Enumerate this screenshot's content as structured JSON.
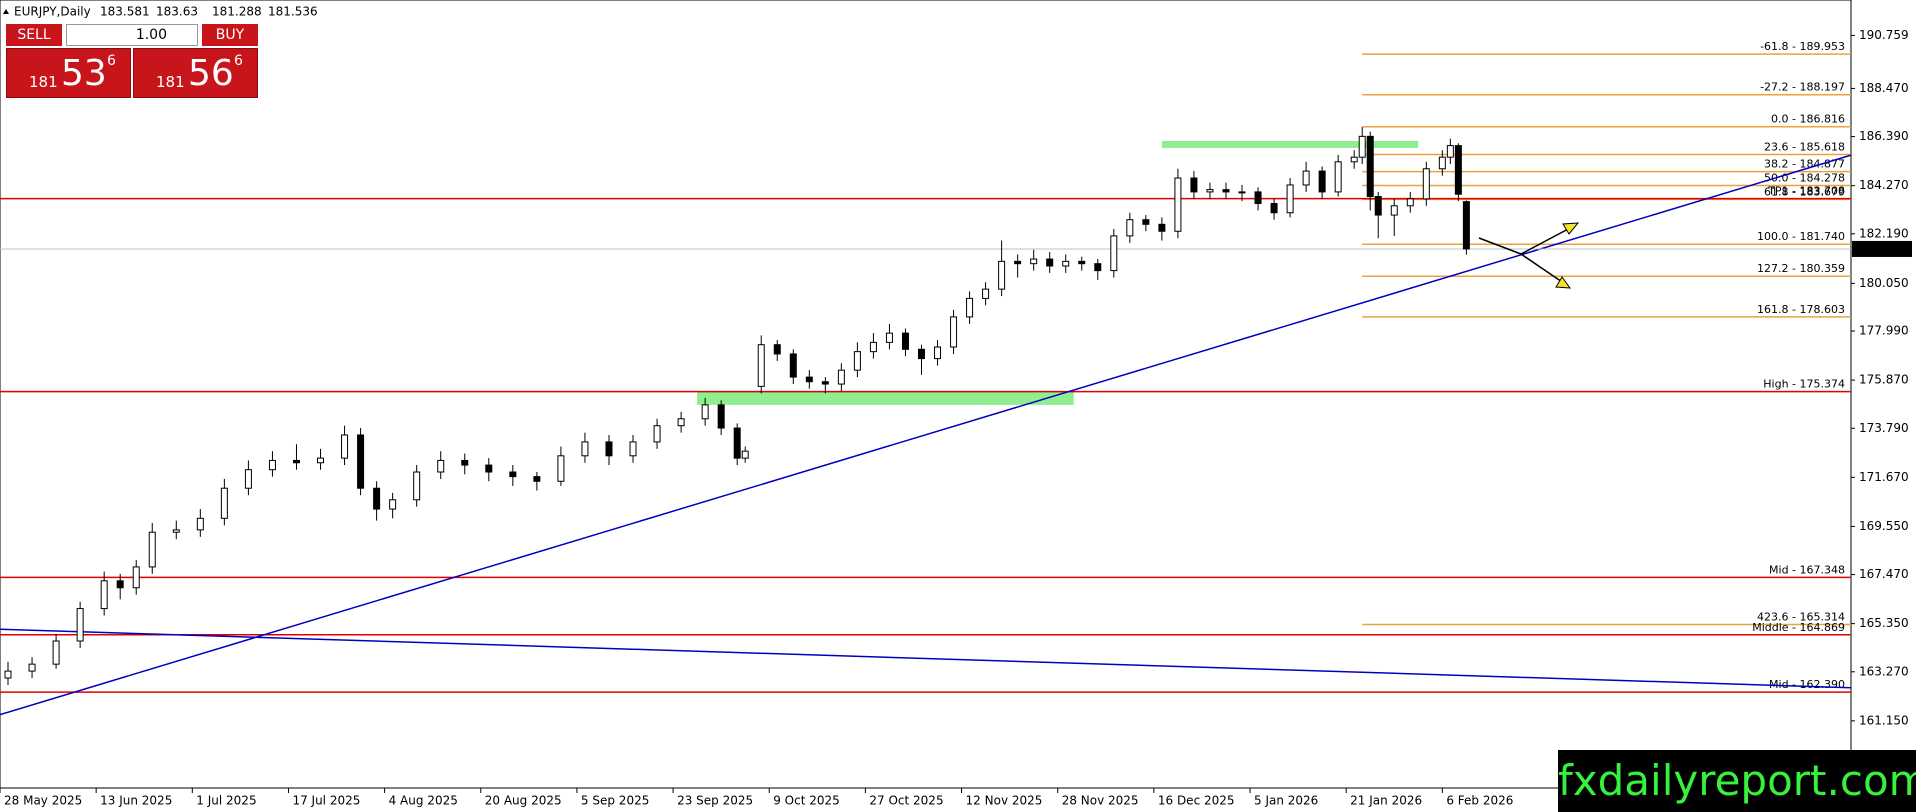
{
  "chart_data": {
    "type": "candlestick",
    "title": "EURJPY,Daily",
    "x": [
      1,
      4,
      7,
      10,
      13,
      15,
      17,
      19,
      22,
      25,
      28,
      31,
      34,
      37,
      40,
      43,
      45,
      47,
      49,
      52,
      55,
      58,
      61,
      64,
      67,
      70,
      73,
      76,
      79,
      82,
      85,
      88,
      90,
      92,
      93,
      95,
      97,
      99,
      101,
      103,
      105,
      107,
      109,
      111,
      113,
      115,
      117,
      119,
      121,
      123,
      125,
      127,
      129,
      131,
      133,
      135,
      137,
      139,
      141,
      143,
      145,
      147,
      149,
      151,
      153,
      155,
      157,
      159,
      161,
      163,
      165,
      167,
      169,
      170,
      171,
      172,
      174,
      176,
      178,
      180,
      181,
      182,
      183
    ],
    "ohlc": [
      [
        163.0,
        163.7,
        162.7,
        163.3
      ],
      [
        163.3,
        163.9,
        163.0,
        163.6
      ],
      [
        163.6,
        164.9,
        163.4,
        164.6
      ],
      [
        164.6,
        166.3,
        164.3,
        166.0
      ],
      [
        166.0,
        167.6,
        165.7,
        167.2
      ],
      [
        167.2,
        167.5,
        166.4,
        166.9
      ],
      [
        166.9,
        168.1,
        166.6,
        167.8
      ],
      [
        167.8,
        169.7,
        167.5,
        169.3
      ],
      [
        169.3,
        169.8,
        169.0,
        169.4
      ],
      [
        169.4,
        170.3,
        169.1,
        169.9
      ],
      [
        169.9,
        171.6,
        169.6,
        171.2
      ],
      [
        171.2,
        172.4,
        170.9,
        172.0
      ],
      [
        172.0,
        172.8,
        171.7,
        172.4
      ],
      [
        172.4,
        173.1,
        172.0,
        172.3
      ],
      [
        172.3,
        172.9,
        172.0,
        172.5
      ],
      [
        172.5,
        173.9,
        172.2,
        173.5
      ],
      [
        173.5,
        173.8,
        170.9,
        171.2
      ],
      [
        171.2,
        171.5,
        169.8,
        170.3
      ],
      [
        170.3,
        171.0,
        169.9,
        170.7
      ],
      [
        170.7,
        172.2,
        170.4,
        171.9
      ],
      [
        171.9,
        172.8,
        171.6,
        172.4
      ],
      [
        172.4,
        172.7,
        171.8,
        172.2
      ],
      [
        172.2,
        172.5,
        171.5,
        171.9
      ],
      [
        171.9,
        172.2,
        171.3,
        171.7
      ],
      [
        171.7,
        171.9,
        171.1,
        171.5
      ],
      [
        171.5,
        173.0,
        171.3,
        172.6
      ],
      [
        172.6,
        173.6,
        172.3,
        173.2
      ],
      [
        173.2,
        173.5,
        172.2,
        172.6
      ],
      [
        172.6,
        173.5,
        172.3,
        173.2
      ],
      [
        173.2,
        174.2,
        172.9,
        173.9
      ],
      [
        173.9,
        174.5,
        173.6,
        174.2
      ],
      [
        174.2,
        175.1,
        173.9,
        174.8
      ],
      [
        174.8,
        175.0,
        173.5,
        173.8
      ],
      [
        173.8,
        174.0,
        172.2,
        172.5
      ],
      [
        172.5,
        173.0,
        172.3,
        172.8
      ],
      [
        175.6,
        177.8,
        175.3,
        177.4
      ],
      [
        177.4,
        177.6,
        176.7,
        177.0
      ],
      [
        177.0,
        177.2,
        175.7,
        176.0
      ],
      [
        176.0,
        176.3,
        175.5,
        175.8
      ],
      [
        175.8,
        176.0,
        175.3,
        175.7
      ],
      [
        175.7,
        176.6,
        175.4,
        176.3
      ],
      [
        176.3,
        177.5,
        176.0,
        177.1
      ],
      [
        177.1,
        177.9,
        176.8,
        177.5
      ],
      [
        177.5,
        178.3,
        177.2,
        177.9
      ],
      [
        177.9,
        178.1,
        176.9,
        177.2
      ],
      [
        177.2,
        177.4,
        176.1,
        176.8
      ],
      [
        176.8,
        177.6,
        176.5,
        177.3
      ],
      [
        177.3,
        178.9,
        177.0,
        178.6
      ],
      [
        178.6,
        179.7,
        178.3,
        179.4
      ],
      [
        179.4,
        180.1,
        179.1,
        179.8
      ],
      [
        179.8,
        181.9,
        179.5,
        181.0
      ],
      [
        181.0,
        181.3,
        180.3,
        180.9
      ],
      [
        180.9,
        181.5,
        180.6,
        181.1
      ],
      [
        181.1,
        181.4,
        180.5,
        180.8
      ],
      [
        180.8,
        181.3,
        180.5,
        181.0
      ],
      [
        181.0,
        181.2,
        180.6,
        180.9
      ],
      [
        180.9,
        181.1,
        180.2,
        180.6
      ],
      [
        180.6,
        182.4,
        180.3,
        182.1
      ],
      [
        182.1,
        183.1,
        181.8,
        182.8
      ],
      [
        182.8,
        183.0,
        182.3,
        182.6
      ],
      [
        182.6,
        182.9,
        181.9,
        182.3
      ],
      [
        182.3,
        185.0,
        182.0,
        184.6
      ],
      [
        184.6,
        184.9,
        183.7,
        184.0
      ],
      [
        184.0,
        184.4,
        183.7,
        184.1
      ],
      [
        184.1,
        184.4,
        183.7,
        184.0
      ],
      [
        184.0,
        184.3,
        183.6,
        184.0
      ],
      [
        184.0,
        184.2,
        183.2,
        183.5
      ],
      [
        183.5,
        183.7,
        182.8,
        183.1
      ],
      [
        183.1,
        184.6,
        182.9,
        184.3
      ],
      [
        184.3,
        185.3,
        184.0,
        184.9
      ],
      [
        184.9,
        185.1,
        183.7,
        184.0
      ],
      [
        184.0,
        185.6,
        183.8,
        185.3
      ],
      [
        185.3,
        185.8,
        185.0,
        185.5
      ],
      [
        185.5,
        186.8,
        185.2,
        186.4
      ],
      [
        186.4,
        186.6,
        183.2,
        183.8
      ],
      [
        183.8,
        184.0,
        182.0,
        183.0
      ],
      [
        183.0,
        183.7,
        182.1,
        183.4
      ],
      [
        183.4,
        184.0,
        183.1,
        183.7
      ],
      [
        183.7,
        185.3,
        183.4,
        185.0
      ],
      [
        185.0,
        185.8,
        184.7,
        185.5
      ],
      [
        185.5,
        186.3,
        185.2,
        186.0
      ],
      [
        186.0,
        186.1,
        183.6,
        183.9
      ],
      [
        183.581,
        183.63,
        181.288,
        181.536
      ]
    ],
    "xlim": [
      0,
      231
    ],
    "ylim": [
      158.25,
      192.29
    ],
    "yticks": [
      190.759,
      {
        "value": 188.47,
        "label": "188.470"
      },
      {
        "value": 186.39,
        "label": "186.390"
      },
      {
        "value": 184.27,
        "label": "184.270"
      },
      {
        "value": 182.19,
        "label": "182.190"
      },
      {
        "value": 180.05,
        "label": "180.050"
      },
      {
        "value": 177.99,
        "label": "177.990"
      },
      {
        "value": 175.87,
        "label": "175.870"
      },
      {
        "value": 173.79,
        "label": "173.790"
      },
      {
        "value": 171.67,
        "label": "171.670"
      },
      {
        "value": 169.55,
        "label": "169.550"
      },
      {
        "value": 167.47,
        "label": "167.470"
      },
      {
        "value": 165.35,
        "label": "165.350"
      },
      {
        "value": 163.27,
        "label": "163.270"
      },
      {
        "value": 161.15,
        "label": "161.150"
      }
    ],
    "xticks": [
      {
        "value": 0,
        "label": "28 May 2025"
      },
      {
        "value": 12,
        "label": "13 Jun 2025"
      },
      {
        "value": 24,
        "label": "1 Jul 2025"
      },
      {
        "value": 36,
        "label": "17 Jul 2025"
      },
      {
        "value": 48,
        "label": "4 Aug 2025"
      },
      {
        "value": 60,
        "label": "20 Aug 2025"
      },
      {
        "value": 72,
        "label": "5 Sep 2025"
      },
      {
        "value": 84,
        "label": "23 Sep 2025"
      },
      {
        "value": 96,
        "label": "9 Oct 2025"
      },
      {
        "value": 108,
        "label": "27 Oct 2025"
      },
      {
        "value": 120,
        "label": "12 Nov 2025"
      },
      {
        "value": 132,
        "label": "28 Nov 2025"
      },
      {
        "value": 144,
        "label": "16 Dec 2025"
      },
      {
        "value": 156,
        "label": "5 Jan 2026"
      },
      {
        "value": 168,
        "label": "21 Jan 2026"
      },
      {
        "value": 180,
        "label": "6 Feb 2026"
      }
    ],
    "levels": [
      {
        "label": "TP1 - 183.708",
        "value": 183.708
      },
      {
        "label": "High - 175.374",
        "value": 175.374
      },
      {
        "label": "Mid - 167.348",
        "value": 167.348
      },
      {
        "label": "Middle - 164.869",
        "value": 164.869
      },
      {
        "label": "Mid - 162.390",
        "value": 162.39
      }
    ],
    "level_color": "#e00000",
    "fib": {
      "x": [
        170,
        231
      ],
      "color": "#e8a33d",
      "levels": [
        {
          "label": "-61.8 - 189.953",
          "value": 189.953
        },
        {
          "label": "-27.2 - 188.197",
          "value": 188.197
        },
        {
          "label": "0.0 - 186.816",
          "value": 186.816
        },
        {
          "label": "23.6 - 185.618",
          "value": 185.618
        },
        {
          "label": "38.2 - 184.877",
          "value": 184.877
        },
        {
          "label": "50.0 - 184.278",
          "value": 184.278
        },
        {
          "label": "61.8 - 183.679",
          "value": 183.679
        },
        {
          "label": "100.0 - 181.740",
          "value": 181.74
        },
        {
          "label": "127.2 - 180.359",
          "value": 180.359
        },
        {
          "label": "161.8 - 178.603",
          "value": 178.603
        },
        {
          "label": "423.6 - 165.314",
          "value": 165.314
        }
      ]
    },
    "zones": [
      {
        "x": [
          145,
          177
        ],
        "y": [
          185.9,
          186.2
        ]
      },
      {
        "x": [
          87,
          134
        ],
        "y": [
          174.8,
          175.4
        ]
      }
    ],
    "zone_color": "#90ee90",
    "trendlines": [
      {
        "x": [
          0,
          231
        ],
        "y": [
          161.42,
          185.59
        ]
      },
      {
        "x": [
          0,
          231
        ],
        "y": [
          165.11,
          162.58
        ]
      }
    ],
    "trend_color": "#0000c0"
  },
  "trade_panel": {
    "sell": "SELL",
    "buy": "BUY",
    "lot": "1.00",
    "sell_price": {
      "big": "181",
      "main": "53",
      "sup": "6"
    },
    "buy_price": {
      "big": "181",
      "main": "56",
      "sup": "6"
    }
  },
  "watermark": "fxdailyreport.com"
}
